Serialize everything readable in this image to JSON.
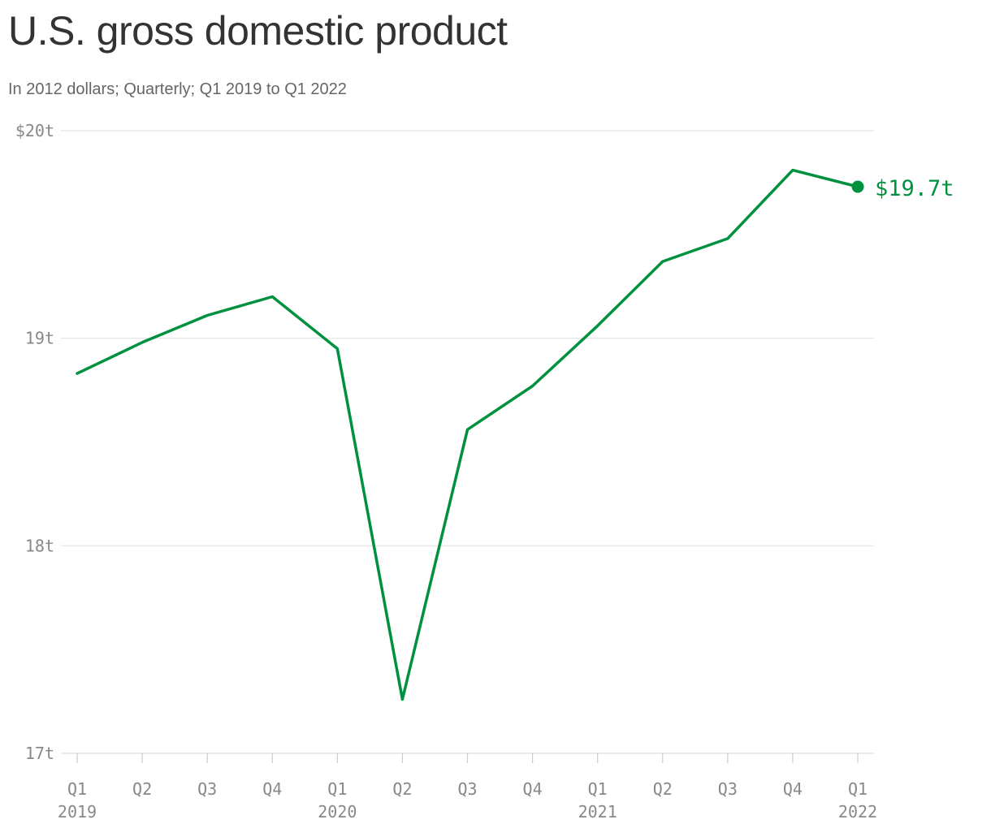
{
  "header": {
    "title": "U.S. gross domestic product",
    "subtitle": "In 2012 dollars; Quarterly; Q1 2019 to Q1 2022"
  },
  "colors": {
    "line": "#00913f",
    "grid": "#e3e3e3",
    "axis_text": "#888888"
  },
  "chart_data": {
    "type": "line",
    "title": "U.S. gross domestic product",
    "subtitle": "In 2012 dollars; Quarterly; Q1 2019 to Q1 2022",
    "unit": "trillions of 2012 dollars",
    "categories": [
      "Q1",
      "Q2",
      "Q3",
      "Q4",
      "Q1",
      "Q2",
      "Q3",
      "Q4",
      "Q1",
      "Q2",
      "Q3",
      "Q4",
      "Q1"
    ],
    "year_labels": [
      "2019",
      "",
      "",
      "",
      "2020",
      "",
      "",
      "",
      "2021",
      "",
      "",
      "",
      "2022"
    ],
    "series": [
      {
        "values": [
          18.83,
          18.98,
          19.11,
          19.2,
          18.95,
          17.26,
          18.56,
          18.77,
          19.06,
          19.37,
          19.48,
          19.81,
          19.73
        ]
      }
    ],
    "ylim": [
      17,
      20
    ],
    "yticks": [
      {
        "value": 20,
        "label": "$20t"
      },
      {
        "value": 19,
        "label": "19t"
      },
      {
        "value": 18,
        "label": "18t"
      },
      {
        "value": 17,
        "label": "17t"
      }
    ],
    "end_label": "$19.7t",
    "grid": true,
    "legend": "none"
  }
}
